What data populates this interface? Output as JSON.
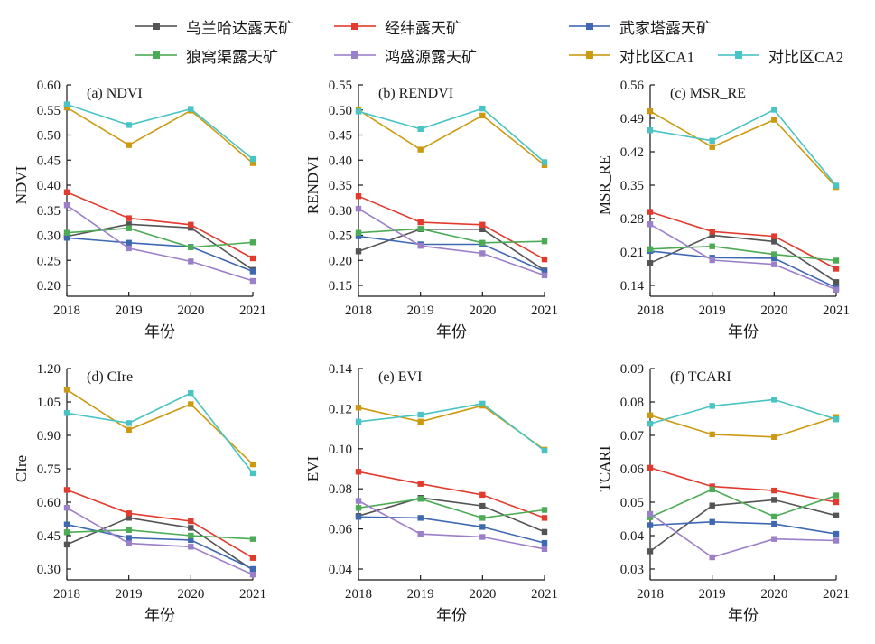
{
  "legend": {
    "rows": [
      [
        0,
        1,
        2
      ],
      [
        3,
        4,
        5,
        6
      ]
    ],
    "items": [
      {
        "label": "乌兰哈达露天矿",
        "color": "#545454"
      },
      {
        "label": "经纬露天矿",
        "color": "#e23b2e"
      },
      {
        "label": "武家塔露天矿",
        "color": "#3e68b2"
      },
      {
        "label": "狼窝渠露天矿",
        "color": "#4cab55"
      },
      {
        "label": "鸿盛源露天矿",
        "color": "#9b7fc9"
      },
      {
        "label": "对比区CA1",
        "color": "#cc9a12"
      },
      {
        "label": "对比区CA2",
        "color": "#49c3c3"
      }
    ]
  },
  "chart_data": [
    {
      "type": "line",
      "panel_label": "(a) NDVI",
      "ylabel": "NDVI",
      "xlabel": "年份",
      "x": [
        2018,
        2019,
        2020,
        2021
      ],
      "ylim": [
        0.2,
        0.6
      ],
      "yticks": [
        0.2,
        0.25,
        0.3,
        0.35,
        0.4,
        0.45,
        0.5,
        0.55,
        0.6
      ],
      "grid": false,
      "legend_position": "top",
      "series": [
        {
          "name": "乌兰哈达露天矿",
          "values": [
            0.298,
            0.322,
            0.315,
            0.231
          ]
        },
        {
          "name": "经纬露天矿",
          "values": [
            0.386,
            0.334,
            0.321,
            0.254
          ]
        },
        {
          "name": "武家塔露天矿",
          "values": [
            0.295,
            0.285,
            0.277,
            0.228
          ]
        },
        {
          "name": "狼窝渠露天矿",
          "values": [
            0.305,
            0.314,
            0.276,
            0.286
          ]
        },
        {
          "name": "鸿盛源露天矿",
          "values": [
            0.36,
            0.274,
            0.248,
            0.209
          ]
        },
        {
          "name": "对比区CA1",
          "values": [
            0.555,
            0.48,
            0.549,
            0.444
          ]
        },
        {
          "name": "对比区CA2",
          "values": [
            0.561,
            0.52,
            0.552,
            0.452
          ]
        }
      ]
    },
    {
      "type": "line",
      "panel_label": "(b) RENDVI",
      "ylabel": "RENDVI",
      "xlabel": "年份",
      "x": [
        2018,
        2019,
        2020,
        2021
      ],
      "ylim": [
        0.15,
        0.55
      ],
      "yticks": [
        0.15,
        0.2,
        0.25,
        0.3,
        0.35,
        0.4,
        0.45,
        0.5,
        0.55
      ],
      "grid": false,
      "series": [
        {
          "name": "乌兰哈达露天矿",
          "values": [
            0.218,
            0.262,
            0.262,
            0.18
          ]
        },
        {
          "name": "经纬露天矿",
          "values": [
            0.328,
            0.276,
            0.271,
            0.202
          ]
        },
        {
          "name": "武家塔露天矿",
          "values": [
            0.248,
            0.232,
            0.232,
            0.178
          ]
        },
        {
          "name": "狼窝渠露天矿",
          "values": [
            0.255,
            0.263,
            0.235,
            0.238
          ]
        },
        {
          "name": "鸿盛源露天矿",
          "values": [
            0.303,
            0.229,
            0.214,
            0.17
          ]
        },
        {
          "name": "对比区CA1",
          "values": [
            0.5,
            0.421,
            0.489,
            0.39
          ]
        },
        {
          "name": "对比区CA2",
          "values": [
            0.497,
            0.462,
            0.503,
            0.396
          ]
        }
      ]
    },
    {
      "type": "line",
      "panel_label": "(c) MSR_RE",
      "ylabel": "MSR_RE",
      "xlabel": "年份",
      "x": [
        2018,
        2019,
        2020,
        2021
      ],
      "ylim": [
        0.14,
        0.56
      ],
      "yticks": [
        0.14,
        0.21,
        0.28,
        0.35,
        0.42,
        0.49,
        0.56
      ],
      "grid": false,
      "series": [
        {
          "name": "乌兰哈达露天矿",
          "values": [
            0.187,
            0.245,
            0.232,
            0.147
          ]
        },
        {
          "name": "经纬露天矿",
          "values": [
            0.294,
            0.253,
            0.243,
            0.175
          ]
        },
        {
          "name": "武家塔露天矿",
          "values": [
            0.212,
            0.198,
            0.197,
            0.135
          ]
        },
        {
          "name": "狼窝渠露天矿",
          "values": [
            0.216,
            0.222,
            0.205,
            0.192
          ]
        },
        {
          "name": "鸿盛源露天矿",
          "values": [
            0.268,
            0.193,
            0.184,
            0.131
          ]
        },
        {
          "name": "对比区CA1",
          "values": [
            0.505,
            0.43,
            0.487,
            0.346
          ]
        },
        {
          "name": "对比区CA2",
          "values": [
            0.465,
            0.443,
            0.508,
            0.349
          ]
        }
      ]
    },
    {
      "type": "line",
      "panel_label": "(d) CIre",
      "ylabel": "CIre",
      "xlabel": "年份",
      "x": [
        2018,
        2019,
        2020,
        2021
      ],
      "ylim": [
        0.3,
        1.2
      ],
      "yticks": [
        0.3,
        0.45,
        0.6,
        0.75,
        0.9,
        1.05,
        1.2
      ],
      "grid": false,
      "series": [
        {
          "name": "乌兰哈达露天矿",
          "values": [
            0.41,
            0.53,
            0.485,
            0.295
          ]
        },
        {
          "name": "经纬露天矿",
          "values": [
            0.655,
            0.55,
            0.515,
            0.35
          ]
        },
        {
          "name": "武家塔露天矿",
          "values": [
            0.5,
            0.44,
            0.43,
            0.3
          ]
        },
        {
          "name": "狼窝渠露天矿",
          "values": [
            0.465,
            0.475,
            0.45,
            0.435
          ]
        },
        {
          "name": "鸿盛源露天矿",
          "values": [
            0.575,
            0.415,
            0.4,
            0.275
          ]
        },
        {
          "name": "对比区CA1",
          "values": [
            1.105,
            0.925,
            1.04,
            0.77
          ]
        },
        {
          "name": "对比区CA2",
          "values": [
            1.0,
            0.955,
            1.09,
            0.73
          ]
        }
      ]
    },
    {
      "type": "line",
      "panel_label": "(e) EVI",
      "ylabel": "EVI",
      "xlabel": "年份",
      "x": [
        2018,
        2019,
        2020,
        2021
      ],
      "ylim": [
        0.04,
        0.14
      ],
      "yticks": [
        0.04,
        0.06,
        0.08,
        0.1,
        0.12,
        0.14
      ],
      "grid": false,
      "series": [
        {
          "name": "乌兰哈达露天矿",
          "values": [
            0.0665,
            0.0755,
            0.0715,
            0.0585
          ]
        },
        {
          "name": "经纬露天矿",
          "values": [
            0.0885,
            0.0825,
            0.077,
            0.0655
          ]
        },
        {
          "name": "武家塔露天矿",
          "values": [
            0.066,
            0.0655,
            0.061,
            0.053
          ]
        },
        {
          "name": "狼窝渠露天矿",
          "values": [
            0.0705,
            0.075,
            0.0655,
            0.0695
          ]
        },
        {
          "name": "鸿盛源露天矿",
          "values": [
            0.074,
            0.0575,
            0.056,
            0.05
          ]
        },
        {
          "name": "对比区CA1",
          "values": [
            0.1205,
            0.1135,
            0.1215,
            0.0995
          ]
        },
        {
          "name": "对比区CA2",
          "values": [
            0.1135,
            0.117,
            0.1225,
            0.099
          ]
        }
      ]
    },
    {
      "type": "line",
      "panel_label": "(f) TCARI",
      "ylabel": "TCARI",
      "xlabel": "年份",
      "x": [
        2018,
        2019,
        2020,
        2021
      ],
      "ylim": [
        0.03,
        0.09
      ],
      "yticks": [
        0.03,
        0.04,
        0.05,
        0.06,
        0.07,
        0.08,
        0.09
      ],
      "grid": false,
      "series": [
        {
          "name": "乌兰哈达露天矿",
          "values": [
            0.0353,
            0.049,
            0.0507,
            0.046
          ]
        },
        {
          "name": "经纬露天矿",
          "values": [
            0.0603,
            0.0547,
            0.0535,
            0.05
          ]
        },
        {
          "name": "武家塔露天矿",
          "values": [
            0.0431,
            0.0441,
            0.0435,
            0.0405
          ]
        },
        {
          "name": "狼窝渠露天矿",
          "values": [
            0.0455,
            0.0538,
            0.0457,
            0.052
          ]
        },
        {
          "name": "鸿盛源露天矿",
          "values": [
            0.0465,
            0.0335,
            0.039,
            0.0385
          ]
        },
        {
          "name": "对比区CA1",
          "values": [
            0.076,
            0.0703,
            0.0695,
            0.0755
          ]
        },
        {
          "name": "对比区CA2",
          "values": [
            0.0735,
            0.0788,
            0.0807,
            0.0748
          ]
        }
      ]
    }
  ]
}
